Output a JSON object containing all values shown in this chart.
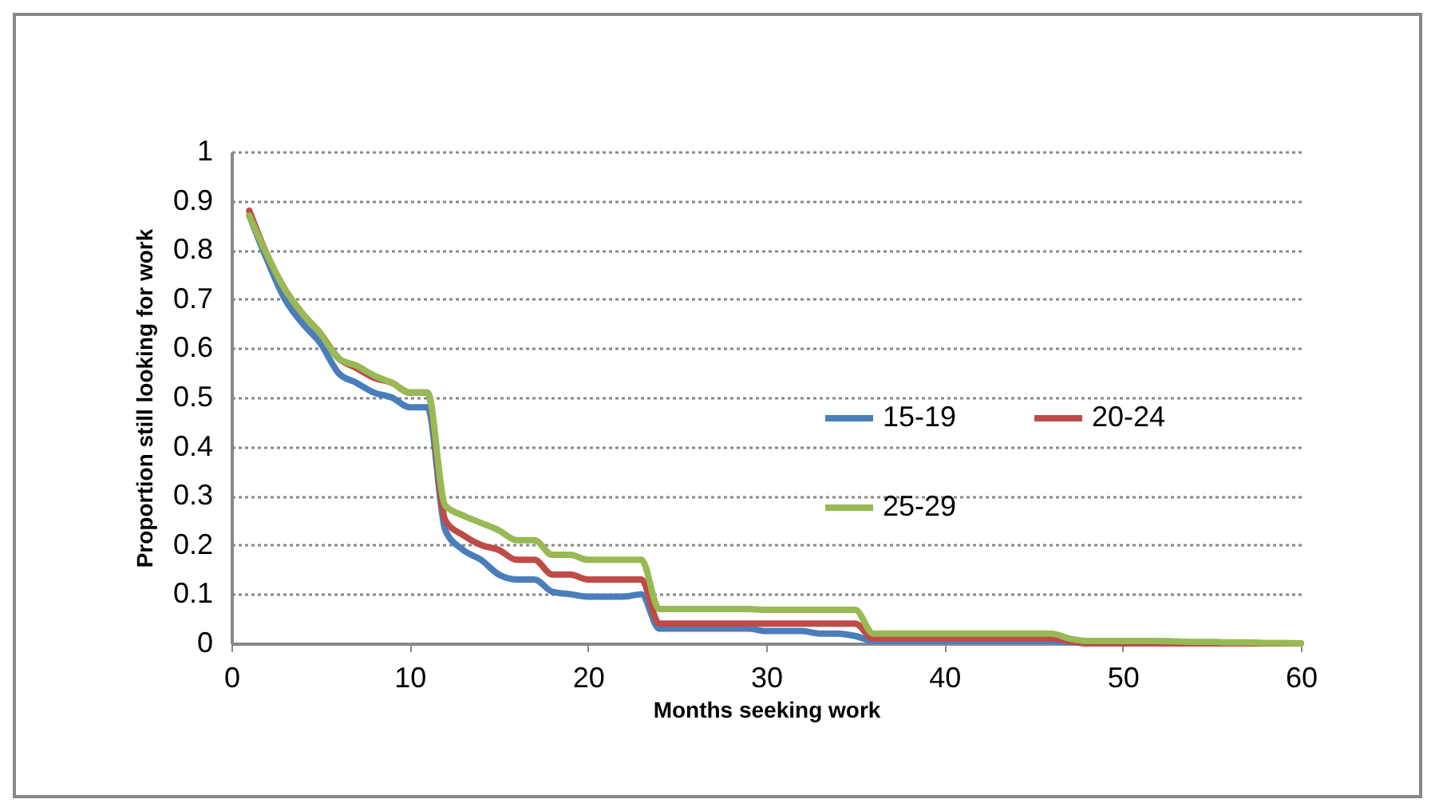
{
  "chart_data": {
    "type": "line",
    "xlabel": "Months seeking work",
    "ylabel": "Proportion still looking for work",
    "x": [
      1,
      2,
      3,
      4,
      5,
      6,
      7,
      8,
      9,
      10,
      11,
      12,
      13,
      14,
      15,
      16,
      17,
      18,
      19,
      20,
      21,
      22,
      23,
      24,
      25,
      26,
      27,
      28,
      29,
      30,
      31,
      32,
      33,
      34,
      35,
      36,
      37,
      38,
      39,
      40,
      41,
      42,
      43,
      44,
      45,
      46,
      47,
      48,
      49,
      50,
      51,
      52,
      53,
      54,
      55,
      56,
      57,
      58,
      59,
      60
    ],
    "series": [
      {
        "name": "15-19",
        "color": "#4a7ebb",
        "values": [
          0.87,
          0.78,
          0.7,
          0.65,
          0.61,
          0.55,
          0.53,
          0.51,
          0.5,
          0.48,
          0.48,
          0.23,
          0.19,
          0.17,
          0.14,
          0.13,
          0.13,
          0.105,
          0.1,
          0.095,
          0.095,
          0.095,
          0.1,
          0.03,
          0.03,
          0.03,
          0.03,
          0.03,
          0.03,
          0.025,
          0.025,
          0.025,
          0.02,
          0.02,
          0.015,
          0.005,
          0.005,
          0.005,
          0.005,
          0.005,
          0.005,
          0.005,
          0.005,
          0.005,
          0.005,
          0.005,
          0.003,
          0,
          null,
          null,
          null,
          null,
          null,
          null,
          null,
          null,
          null,
          null,
          null,
          null
        ]
      },
      {
        "name": "20-24",
        "color": "#be4b48",
        "values": [
          0.88,
          0.79,
          0.72,
          0.67,
          0.63,
          0.58,
          0.56,
          0.54,
          0.53,
          0.51,
          0.51,
          0.25,
          0.22,
          0.2,
          0.19,
          0.17,
          0.17,
          0.14,
          0.14,
          0.13,
          0.13,
          0.13,
          0.13,
          0.04,
          0.04,
          0.04,
          0.04,
          0.04,
          0.04,
          0.04,
          0.04,
          0.04,
          0.04,
          0.04,
          0.04,
          0.01,
          0.01,
          0.01,
          0.01,
          0.01,
          0.01,
          0.01,
          0.01,
          0.01,
          0.01,
          0.01,
          0.005,
          0,
          0,
          0,
          0,
          0,
          0,
          0,
          0,
          0,
          0,
          0,
          0,
          0
        ]
      },
      {
        "name": "25-29",
        "color": "#98b954",
        "values": [
          0.87,
          0.79,
          0.72,
          0.67,
          0.63,
          0.58,
          0.565,
          0.545,
          0.53,
          0.51,
          0.51,
          0.28,
          0.26,
          0.245,
          0.23,
          0.21,
          0.21,
          0.18,
          0.18,
          0.17,
          0.17,
          0.17,
          0.17,
          0.07,
          0.07,
          0.07,
          0.07,
          0.07,
          0.07,
          0.068,
          0.068,
          0.068,
          0.068,
          0.068,
          0.068,
          0.02,
          0.02,
          0.02,
          0.02,
          0.02,
          0.02,
          0.02,
          0.02,
          0.02,
          0.02,
          0.02,
          0.01,
          0.005,
          0.005,
          0.005,
          0.005,
          0.005,
          0.004,
          0.003,
          0.003,
          0.002,
          0.002,
          0.001,
          0.001,
          0
        ]
      }
    ],
    "xlim": [
      0,
      60
    ],
    "xticks": [
      0,
      10,
      20,
      30,
      40,
      50,
      60
    ],
    "ylim": [
      0,
      1
    ],
    "yticks": [
      0,
      0.1,
      0.2,
      0.3,
      0.4,
      0.5,
      0.6,
      0.7,
      0.8,
      0.9,
      1
    ],
    "grid": "y",
    "legend": "right"
  }
}
